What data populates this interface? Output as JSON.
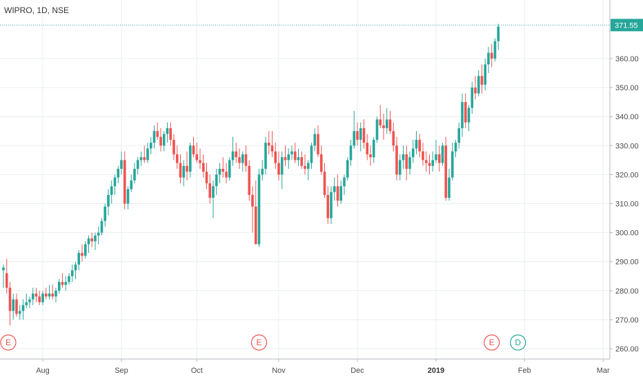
{
  "header": {
    "symbol": "WIPRO",
    "interval": "1D",
    "exchange": "NSE",
    "title": "WIPRO, 1D, NSE"
  },
  "colors": {
    "up": "#26a69a",
    "down": "#ef5350",
    "grid": "#e9eef3",
    "axis": "#b2b5be",
    "text": "#4a4a4a",
    "last_price_bg": "#26a69a"
  },
  "last_price": {
    "value": 371.55,
    "label": "371.55"
  },
  "events": [
    {
      "letter": "E",
      "index": 0,
      "color": "#ef5350"
    },
    {
      "letter": "E",
      "index": 78,
      "color": "#ef5350"
    },
    {
      "letter": "E",
      "index": 149,
      "color": "#ef5350"
    },
    {
      "letter": "D",
      "index": 157,
      "color": "#26a69a"
    }
  ],
  "chart_data": {
    "type": "candlestick",
    "title": "WIPRO, 1D, NSE",
    "ylim": [
      256,
      376
    ],
    "y_ticks": [
      {
        "value": 260,
        "label": "260.00"
      },
      {
        "value": 270,
        "label": "270.00"
      },
      {
        "value": 280,
        "label": "280.00"
      },
      {
        "value": 290,
        "label": "290.00"
      },
      {
        "value": 300,
        "label": "300.00"
      },
      {
        "value": 310,
        "label": "310.00"
      },
      {
        "value": 320,
        "label": "320.00"
      },
      {
        "value": 330,
        "label": "330.00"
      },
      {
        "value": 340,
        "label": "340.00"
      },
      {
        "value": 350,
        "label": "350.00"
      },
      {
        "value": 360,
        "label": "360.00"
      }
    ],
    "x_ticks": [
      {
        "index": 12,
        "label": "Aug",
        "bold": false
      },
      {
        "index": 36,
        "label": "Sep",
        "bold": false
      },
      {
        "index": 59,
        "label": "Oct",
        "bold": false
      },
      {
        "index": 84,
        "label": "Nov",
        "bold": false
      },
      {
        "index": 108,
        "label": "Dec",
        "bold": false
      },
      {
        "index": 132,
        "label": "2019",
        "bold": true
      },
      {
        "index": 159,
        "label": "Feb",
        "bold": false
      },
      {
        "index": 183,
        "label": "Mar",
        "bold": false
      }
    ],
    "x_range": [
      0,
      186
    ],
    "candles": [
      [
        287,
        289,
        281,
        288
      ],
      [
        286,
        291,
        279,
        281
      ],
      [
        281,
        283,
        268,
        273
      ],
      [
        273,
        279,
        270,
        277
      ],
      [
        277,
        279,
        271,
        272
      ],
      [
        272,
        275,
        270,
        273
      ],
      [
        273,
        277,
        270,
        275
      ],
      [
        275,
        279,
        274,
        276
      ],
      [
        276,
        278,
        274,
        277
      ],
      [
        277,
        281,
        275,
        279
      ],
      [
        279,
        281,
        276,
        278
      ],
      [
        278,
        280,
        275,
        276
      ],
      [
        276,
        280,
        275,
        279
      ],
      [
        279,
        281,
        277,
        278
      ],
      [
        278,
        282,
        277,
        279
      ],
      [
        279,
        282,
        277,
        278
      ],
      [
        278,
        281,
        276,
        280
      ],
      [
        280,
        284,
        279,
        283
      ],
      [
        283,
        286,
        281,
        282
      ],
      [
        282,
        285,
        280,
        283
      ],
      [
        283,
        286,
        282,
        285
      ],
      [
        285,
        289,
        283,
        287
      ],
      [
        287,
        290,
        284,
        289
      ],
      [
        289,
        294,
        287,
        293
      ],
      [
        293,
        296,
        290,
        292
      ],
      [
        292,
        297,
        291,
        296
      ],
      [
        296,
        299,
        293,
        298
      ],
      [
        298,
        300,
        295,
        297
      ],
      [
        297,
        300,
        294,
        299
      ],
      [
        299,
        302,
        296,
        300
      ],
      [
        300,
        305,
        299,
        304
      ],
      [
        304,
        310,
        302,
        309
      ],
      [
        309,
        315,
        306,
        313
      ],
      [
        313,
        318,
        310,
        316
      ],
      [
        316,
        320,
        313,
        319
      ],
      [
        319,
        323,
        317,
        322
      ],
      [
        322,
        328,
        320,
        325
      ],
      [
        325,
        328,
        308,
        310
      ],
      [
        310,
        316,
        308,
        315
      ],
      [
        315,
        320,
        314,
        318
      ],
      [
        318,
        324,
        317,
        322
      ],
      [
        322,
        326,
        320,
        325
      ],
      [
        325,
        328,
        323,
        326
      ],
      [
        326,
        330,
        324,
        325
      ],
      [
        325,
        331,
        324,
        329
      ],
      [
        329,
        333,
        327,
        331
      ],
      [
        331,
        337,
        329,
        335
      ],
      [
        335,
        338,
        332,
        333
      ],
      [
        333,
        336,
        328,
        330
      ],
      [
        330,
        335,
        328,
        334
      ],
      [
        334,
        338,
        331,
        336
      ],
      [
        336,
        338,
        330,
        332
      ],
      [
        332,
        334,
        325,
        327
      ],
      [
        327,
        330,
        322,
        324
      ],
      [
        324,
        327,
        317,
        319
      ],
      [
        319,
        325,
        316,
        323
      ],
      [
        323,
        328,
        318,
        321
      ],
      [
        321,
        331,
        319,
        330
      ],
      [
        330,
        333,
        326,
        327
      ],
      [
        327,
        331,
        324,
        325
      ],
      [
        325,
        329,
        322,
        324
      ],
      [
        324,
        327,
        319,
        321
      ],
      [
        321,
        324,
        315,
        317
      ],
      [
        317,
        320,
        310,
        312
      ],
      [
        312,
        318,
        305,
        316
      ],
      [
        316,
        322,
        313,
        320
      ],
      [
        320,
        324,
        317,
        322
      ],
      [
        322,
        326,
        319,
        321
      ],
      [
        321,
        324,
        317,
        319
      ],
      [
        319,
        326,
        318,
        325
      ],
      [
        325,
        333,
        323,
        328
      ],
      [
        328,
        331,
        324,
        326
      ],
      [
        326,
        329,
        322,
        324
      ],
      [
        324,
        328,
        321,
        327
      ],
      [
        327,
        330,
        321,
        323
      ],
      [
        323,
        325,
        311,
        313
      ],
      [
        313,
        316,
        300,
        309
      ],
      [
        309,
        318,
        296,
        296
      ],
      [
        296,
        322,
        295,
        320
      ],
      [
        320,
        325,
        318,
        322
      ],
      [
        322,
        333,
        320,
        331
      ],
      [
        331,
        335,
        327,
        330
      ],
      [
        330,
        335,
        326,
        328
      ],
      [
        328,
        331,
        322,
        324
      ],
      [
        324,
        328,
        318,
        320
      ],
      [
        320,
        328,
        315,
        326
      ],
      [
        326,
        330,
        323,
        325
      ],
      [
        325,
        329,
        322,
        327
      ],
      [
        327,
        330,
        325,
        328
      ],
      [
        328,
        331,
        324,
        325
      ],
      [
        325,
        329,
        323,
        326
      ],
      [
        326,
        328,
        322,
        323
      ],
      [
        323,
        327,
        320,
        322
      ],
      [
        322,
        325,
        318,
        324
      ],
      [
        324,
        331,
        322,
        330
      ],
      [
        330,
        336,
        328,
        334
      ],
      [
        334,
        337,
        326,
        327
      ],
      [
        327,
        330,
        320,
        321
      ],
      [
        321,
        324,
        312,
        313
      ],
      [
        313,
        316,
        303,
        305
      ],
      [
        305,
        316,
        303,
        314
      ],
      [
        314,
        319,
        311,
        316
      ],
      [
        316,
        320,
        309,
        311
      ],
      [
        311,
        318,
        310,
        316
      ],
      [
        316,
        320,
        313,
        319
      ],
      [
        319,
        326,
        318,
        325
      ],
      [
        325,
        332,
        323,
        330
      ],
      [
        330,
        342,
        329,
        335
      ],
      [
        335,
        338,
        330,
        332
      ],
      [
        332,
        338,
        328,
        336
      ],
      [
        336,
        339,
        329,
        331
      ],
      [
        331,
        334,
        325,
        327
      ],
      [
        327,
        330,
        323,
        326
      ],
      [
        326,
        333,
        324,
        332
      ],
      [
        332,
        340,
        331,
        339
      ],
      [
        339,
        344,
        336,
        337
      ],
      [
        337,
        341,
        332,
        336
      ],
      [
        336,
        343,
        334,
        339
      ],
      [
        339,
        342,
        334,
        335
      ],
      [
        335,
        338,
        328,
        330
      ],
      [
        330,
        333,
        318,
        320
      ],
      [
        320,
        327,
        318,
        325
      ],
      [
        325,
        330,
        322,
        327
      ],
      [
        327,
        330,
        318,
        322
      ],
      [
        322,
        328,
        320,
        326
      ],
      [
        326,
        332,
        324,
        329
      ],
      [
        329,
        335,
        327,
        332
      ],
      [
        332,
        334,
        326,
        328
      ],
      [
        328,
        331,
        323,
        325
      ],
      [
        325,
        328,
        321,
        324
      ],
      [
        324,
        327,
        320,
        323
      ],
      [
        323,
        328,
        321,
        325
      ],
      [
        325,
        332,
        324,
        327
      ],
      [
        327,
        330,
        321,
        324
      ],
      [
        324,
        331,
        323,
        330
      ],
      [
        330,
        333,
        311,
        312
      ],
      [
        312,
        322,
        311,
        319
      ],
      [
        319,
        331,
        318,
        328
      ],
      [
        328,
        332,
        326,
        331
      ],
      [
        331,
        338,
        329,
        336
      ],
      [
        336,
        348,
        333,
        345
      ],
      [
        345,
        348,
        336,
        338
      ],
      [
        338,
        344,
        335,
        343
      ],
      [
        343,
        352,
        341,
        350
      ],
      [
        350,
        354,
        346,
        348
      ],
      [
        348,
        356,
        347,
        354
      ],
      [
        354,
        358,
        348,
        351
      ],
      [
        351,
        360,
        349,
        358
      ],
      [
        358,
        364,
        355,
        362
      ],
      [
        362,
        365,
        357,
        360
      ],
      [
        360,
        367,
        359,
        366
      ],
      [
        366,
        372,
        363,
        371
      ]
    ]
  }
}
